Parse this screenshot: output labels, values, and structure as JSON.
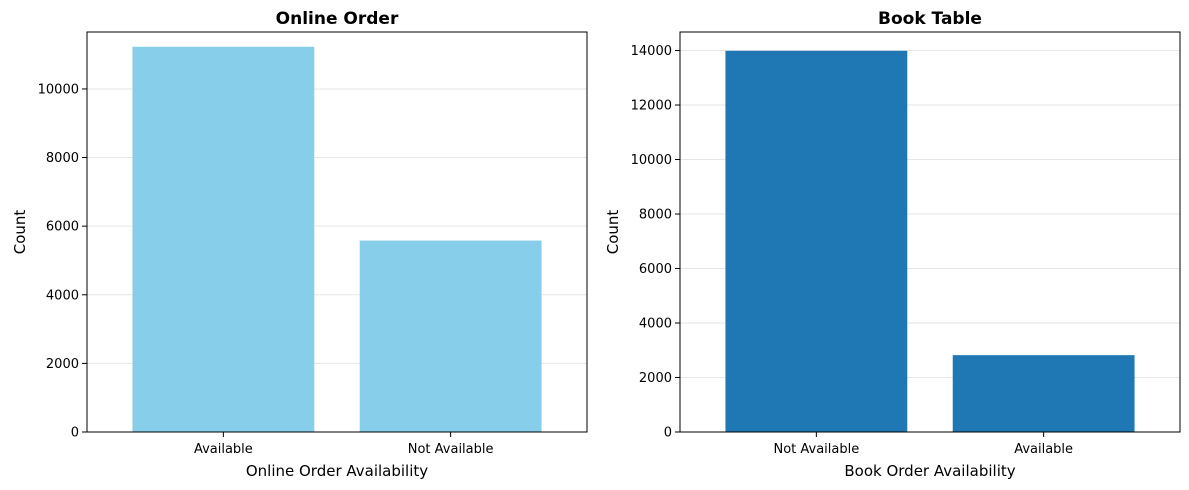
{
  "chart_data": [
    {
      "type": "bar",
      "title": "Online Order",
      "xlabel": "Online Order Availability",
      "ylabel": "Count",
      "categories": [
        "Available",
        "Not Available"
      ],
      "values": [
        11230,
        5580
      ],
      "ylim": [
        0,
        11660
      ],
      "yticks": [
        0,
        2000,
        4000,
        6000,
        8000,
        10000
      ],
      "yticklabels": [
        "0",
        "2000",
        "4000",
        "6000",
        "8000",
        "10000"
      ],
      "grid": true,
      "bar_color": "#87CEEB"
    },
    {
      "type": "bar",
      "title": "Book Table",
      "xlabel": "Book Order Availability",
      "ylabel": "Count",
      "categories": [
        "Not Available",
        "Available"
      ],
      "values": [
        13990,
        2820
      ],
      "ylim": [
        0,
        14680
      ],
      "yticks": [
        0,
        2000,
        4000,
        6000,
        8000,
        10000,
        12000,
        14000
      ],
      "yticklabels": [
        "0",
        "2000",
        "4000",
        "6000",
        "8000",
        "10000",
        "12000",
        "14000"
      ],
      "grid": true,
      "bar_color": "#1F77B4"
    }
  ]
}
